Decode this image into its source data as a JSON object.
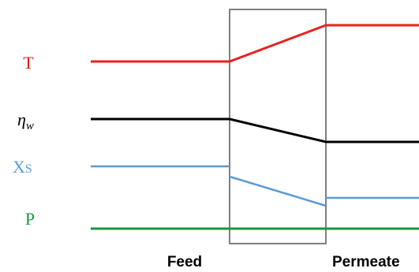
{
  "variables": [
    {
      "id": "temperature",
      "label": "T",
      "color": "#e8201c"
    },
    {
      "id": "viscosity",
      "label": "ηw",
      "label_main": "η",
      "label_sub": "w",
      "color": "#000000"
    },
    {
      "id": "solute-fraction",
      "label": "XS",
      "label_main": "X",
      "label_sub": "S",
      "color": "#5b9bd5"
    },
    {
      "id": "pressure",
      "label": "P",
      "color": "#1a9641"
    }
  ],
  "regions": {
    "feed": "Feed",
    "permeate": "Permeate"
  },
  "membrane_color": "#7f7f7f"
}
